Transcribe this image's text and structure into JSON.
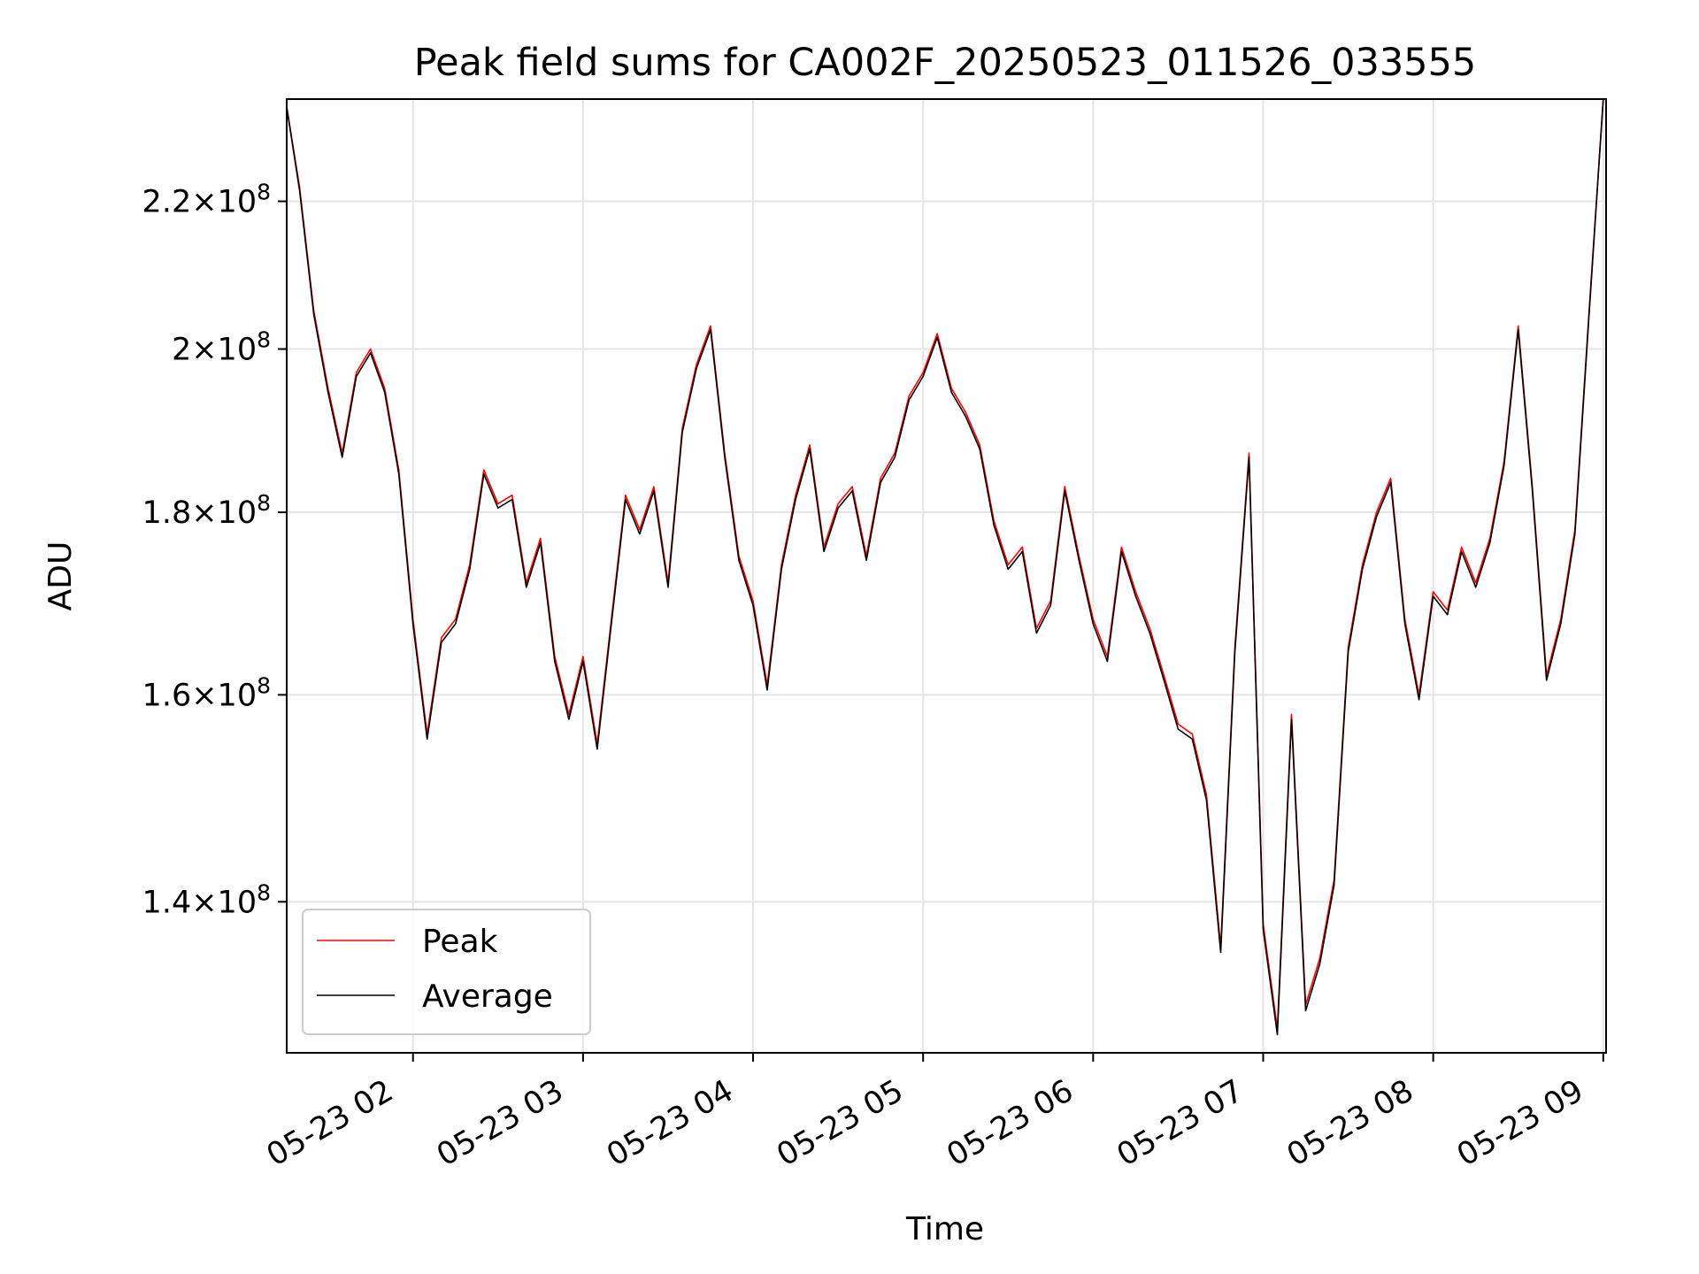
{
  "chart_data": {
    "type": "line",
    "title": "Peak field sums for CA002F_20250523_011526_033555",
    "xlabel": "Time",
    "ylabel": "ADU",
    "yscale": "log",
    "grid": true,
    "legend_position": "lower-left",
    "xlim": [
      "2025-05-23 01:15:26",
      "2025-05-23 09:01:00"
    ],
    "ylim": [
      127000000,
      235000000
    ],
    "x_ticks": [
      {
        "value": "2025-05-23 02:00",
        "label": "05-23 02"
      },
      {
        "value": "2025-05-23 03:00",
        "label": "05-23 03"
      },
      {
        "value": "2025-05-23 04:00",
        "label": "05-23 04"
      },
      {
        "value": "2025-05-23 05:00",
        "label": "05-23 05"
      },
      {
        "value": "2025-05-23 06:00",
        "label": "05-23 06"
      },
      {
        "value": "2025-05-23 07:00",
        "label": "05-23 07"
      },
      {
        "value": "2025-05-23 08:00",
        "label": "05-23 08"
      },
      {
        "value": "2025-05-23 09:00",
        "label": "05-23 09"
      }
    ],
    "y_ticks": [
      {
        "value": 140000000,
        "mantissa": "1.4",
        "exp": "8"
      },
      {
        "value": 160000000,
        "mantissa": "1.6",
        "exp": "8"
      },
      {
        "value": 180000000,
        "mantissa": "1.8",
        "exp": "8"
      },
      {
        "value": 200000000,
        "mantissa": "2",
        "exp": "8"
      },
      {
        "value": 220000000,
        "mantissa": "2.2",
        "exp": "8"
      }
    ],
    "series": [
      {
        "name": "Peak",
        "color": "#ff0000",
        "x": [
          "2025-05-23 01:15",
          "2025-05-23 01:20",
          "2025-05-23 01:25",
          "2025-05-23 01:30",
          "2025-05-23 01:35",
          "2025-05-23 01:40",
          "2025-05-23 01:45",
          "2025-05-23 01:50",
          "2025-05-23 01:55",
          "2025-05-23 02:00",
          "2025-05-23 02:05",
          "2025-05-23 02:10",
          "2025-05-23 02:15",
          "2025-05-23 02:20",
          "2025-05-23 02:25",
          "2025-05-23 02:30",
          "2025-05-23 02:35",
          "2025-05-23 02:40",
          "2025-05-23 02:45",
          "2025-05-23 02:50",
          "2025-05-23 02:55",
          "2025-05-23 03:00",
          "2025-05-23 03:05",
          "2025-05-23 03:10",
          "2025-05-23 03:15",
          "2025-05-23 03:20",
          "2025-05-23 03:25",
          "2025-05-23 03:30",
          "2025-05-23 03:35",
          "2025-05-23 03:40",
          "2025-05-23 03:45",
          "2025-05-23 03:50",
          "2025-05-23 03:55",
          "2025-05-23 04:00",
          "2025-05-23 04:05",
          "2025-05-23 04:10",
          "2025-05-23 04:15",
          "2025-05-23 04:20",
          "2025-05-23 04:25",
          "2025-05-23 04:30",
          "2025-05-23 04:35",
          "2025-05-23 04:40",
          "2025-05-23 04:45",
          "2025-05-23 04:50",
          "2025-05-23 04:55",
          "2025-05-23 05:00",
          "2025-05-23 05:05",
          "2025-05-23 05:10",
          "2025-05-23 05:15",
          "2025-05-23 05:20",
          "2025-05-23 05:25",
          "2025-05-23 05:30",
          "2025-05-23 05:35",
          "2025-05-23 05:40",
          "2025-05-23 05:45",
          "2025-05-23 05:50",
          "2025-05-23 05:55",
          "2025-05-23 06:00",
          "2025-05-23 06:05",
          "2025-05-23 06:10",
          "2025-05-23 06:15",
          "2025-05-23 06:20",
          "2025-05-23 06:25",
          "2025-05-23 06:30",
          "2025-05-23 06:35",
          "2025-05-23 06:40",
          "2025-05-23 06:45",
          "2025-05-23 06:50",
          "2025-05-23 06:55",
          "2025-05-23 07:00",
          "2025-05-23 07:05",
          "2025-05-23 07:10",
          "2025-05-23 07:15",
          "2025-05-23 07:20",
          "2025-05-23 07:25",
          "2025-05-23 07:30",
          "2025-05-23 07:35",
          "2025-05-23 07:40",
          "2025-05-23 07:45",
          "2025-05-23 07:50",
          "2025-05-23 07:55",
          "2025-05-23 08:00",
          "2025-05-23 08:05",
          "2025-05-23 08:10",
          "2025-05-23 08:15",
          "2025-05-23 08:20",
          "2025-05-23 08:25",
          "2025-05-23 08:30",
          "2025-05-23 08:35",
          "2025-05-23 08:40",
          "2025-05-23 08:45",
          "2025-05-23 08:50",
          "2025-05-23 08:55",
          "2025-05-23 09:00"
        ],
        "values": [
          235000000,
          222000000,
          205000000,
          195000000,
          187000000,
          197000000,
          200000000,
          195000000,
          185000000,
          168000000,
          156000000,
          166000000,
          168000000,
          174000000,
          185000000,
          181000000,
          182000000,
          172000000,
          177000000,
          164000000,
          158000000,
          164000000,
          155000000,
          168000000,
          182000000,
          178000000,
          183000000,
          172000000,
          190000000,
          198000000,
          203000000,
          187000000,
          175000000,
          170000000,
          161000000,
          174000000,
          182000000,
          188000000,
          176000000,
          181000000,
          183000000,
          175000000,
          184000000,
          187000000,
          194000000,
          197000000,
          202000000,
          195000000,
          192000000,
          188000000,
          179000000,
          174000000,
          176000000,
          167000000,
          170000000,
          183000000,
          175000000,
          168000000,
          164000000,
          176000000,
          171000000,
          167000000,
          162000000,
          157000000,
          156000000,
          150000000,
          136000000,
          165000000,
          187000000,
          138000000,
          129000000,
          158000000,
          131000000,
          135000000,
          142000000,
          165000000,
          174000000,
          180000000,
          184000000,
          168000000,
          160000000,
          171000000,
          169000000,
          176000000,
          172000000,
          177000000,
          186000000,
          203000000,
          183000000,
          162000000,
          168000000,
          178000000,
          205000000,
          235000000
        ]
      },
      {
        "name": "Average",
        "color": "#000000",
        "x": [
          "2025-05-23 01:15",
          "2025-05-23 01:20",
          "2025-05-23 01:25",
          "2025-05-23 01:30",
          "2025-05-23 01:35",
          "2025-05-23 01:40",
          "2025-05-23 01:45",
          "2025-05-23 01:50",
          "2025-05-23 01:55",
          "2025-05-23 02:00",
          "2025-05-23 02:05",
          "2025-05-23 02:10",
          "2025-05-23 02:15",
          "2025-05-23 02:20",
          "2025-05-23 02:25",
          "2025-05-23 02:30",
          "2025-05-23 02:35",
          "2025-05-23 02:40",
          "2025-05-23 02:45",
          "2025-05-23 02:50",
          "2025-05-23 02:55",
          "2025-05-23 03:00",
          "2025-05-23 03:05",
          "2025-05-23 03:10",
          "2025-05-23 03:15",
          "2025-05-23 03:20",
          "2025-05-23 03:25",
          "2025-05-23 03:30",
          "2025-05-23 03:35",
          "2025-05-23 03:40",
          "2025-05-23 03:45",
          "2025-05-23 03:50",
          "2025-05-23 03:55",
          "2025-05-23 04:00",
          "2025-05-23 04:05",
          "2025-05-23 04:10",
          "2025-05-23 04:15",
          "2025-05-23 04:20",
          "2025-05-23 04:25",
          "2025-05-23 04:30",
          "2025-05-23 04:35",
          "2025-05-23 04:40",
          "2025-05-23 04:45",
          "2025-05-23 04:50",
          "2025-05-23 04:55",
          "2025-05-23 05:00",
          "2025-05-23 05:05",
          "2025-05-23 05:10",
          "2025-05-23 05:15",
          "2025-05-23 05:20",
          "2025-05-23 05:25",
          "2025-05-23 05:30",
          "2025-05-23 05:35",
          "2025-05-23 05:40",
          "2025-05-23 05:45",
          "2025-05-23 05:50",
          "2025-05-23 05:55",
          "2025-05-23 06:00",
          "2025-05-23 06:05",
          "2025-05-23 06:10",
          "2025-05-23 06:15",
          "2025-05-23 06:20",
          "2025-05-23 06:25",
          "2025-05-23 06:30",
          "2025-05-23 06:35",
          "2025-05-23 06:40",
          "2025-05-23 06:45",
          "2025-05-23 06:50",
          "2025-05-23 06:55",
          "2025-05-23 07:00",
          "2025-05-23 07:05",
          "2025-05-23 07:10",
          "2025-05-23 07:15",
          "2025-05-23 07:20",
          "2025-05-23 07:25",
          "2025-05-23 07:30",
          "2025-05-23 07:35",
          "2025-05-23 07:40",
          "2025-05-23 07:45",
          "2025-05-23 07:50",
          "2025-05-23 07:55",
          "2025-05-23 08:00",
          "2025-05-23 08:05",
          "2025-05-23 08:10",
          "2025-05-23 08:15",
          "2025-05-23 08:20",
          "2025-05-23 08:25",
          "2025-05-23 08:30",
          "2025-05-23 08:35",
          "2025-05-23 08:40",
          "2025-05-23 08:45",
          "2025-05-23 08:50",
          "2025-05-23 08:55",
          "2025-05-23 09:00"
        ],
        "values": [
          235000000,
          221500000,
          204500000,
          194500000,
          186500000,
          196500000,
          199500000,
          194500000,
          184500000,
          167500000,
          155500000,
          165500000,
          167500000,
          173500000,
          184500000,
          180500000,
          181500000,
          171500000,
          176500000,
          163500000,
          157500000,
          163500000,
          154500000,
          167500000,
          181500000,
          177500000,
          182500000,
          171500000,
          189500000,
          197500000,
          202500000,
          186500000,
          174500000,
          169500000,
          160500000,
          173500000,
          181500000,
          187500000,
          175500000,
          180500000,
          182500000,
          174500000,
          183500000,
          186500000,
          193500000,
          196500000,
          201500000,
          194500000,
          191500000,
          187500000,
          178500000,
          173500000,
          175500000,
          166500000,
          169500000,
          182500000,
          174500000,
          167500000,
          163500000,
          175500000,
          170500000,
          166500000,
          161500000,
          156500000,
          155500000,
          149500000,
          135500000,
          164500000,
          186500000,
          137500000,
          128500000,
          157500000,
          130500000,
          134500000,
          141500000,
          164500000,
          173500000,
          179500000,
          183500000,
          167500000,
          159500000,
          170500000,
          168500000,
          175500000,
          171500000,
          176500000,
          185500000,
          202500000,
          182500000,
          161500000,
          167500000,
          177500000,
          204500000,
          235000000
        ]
      }
    ]
  }
}
